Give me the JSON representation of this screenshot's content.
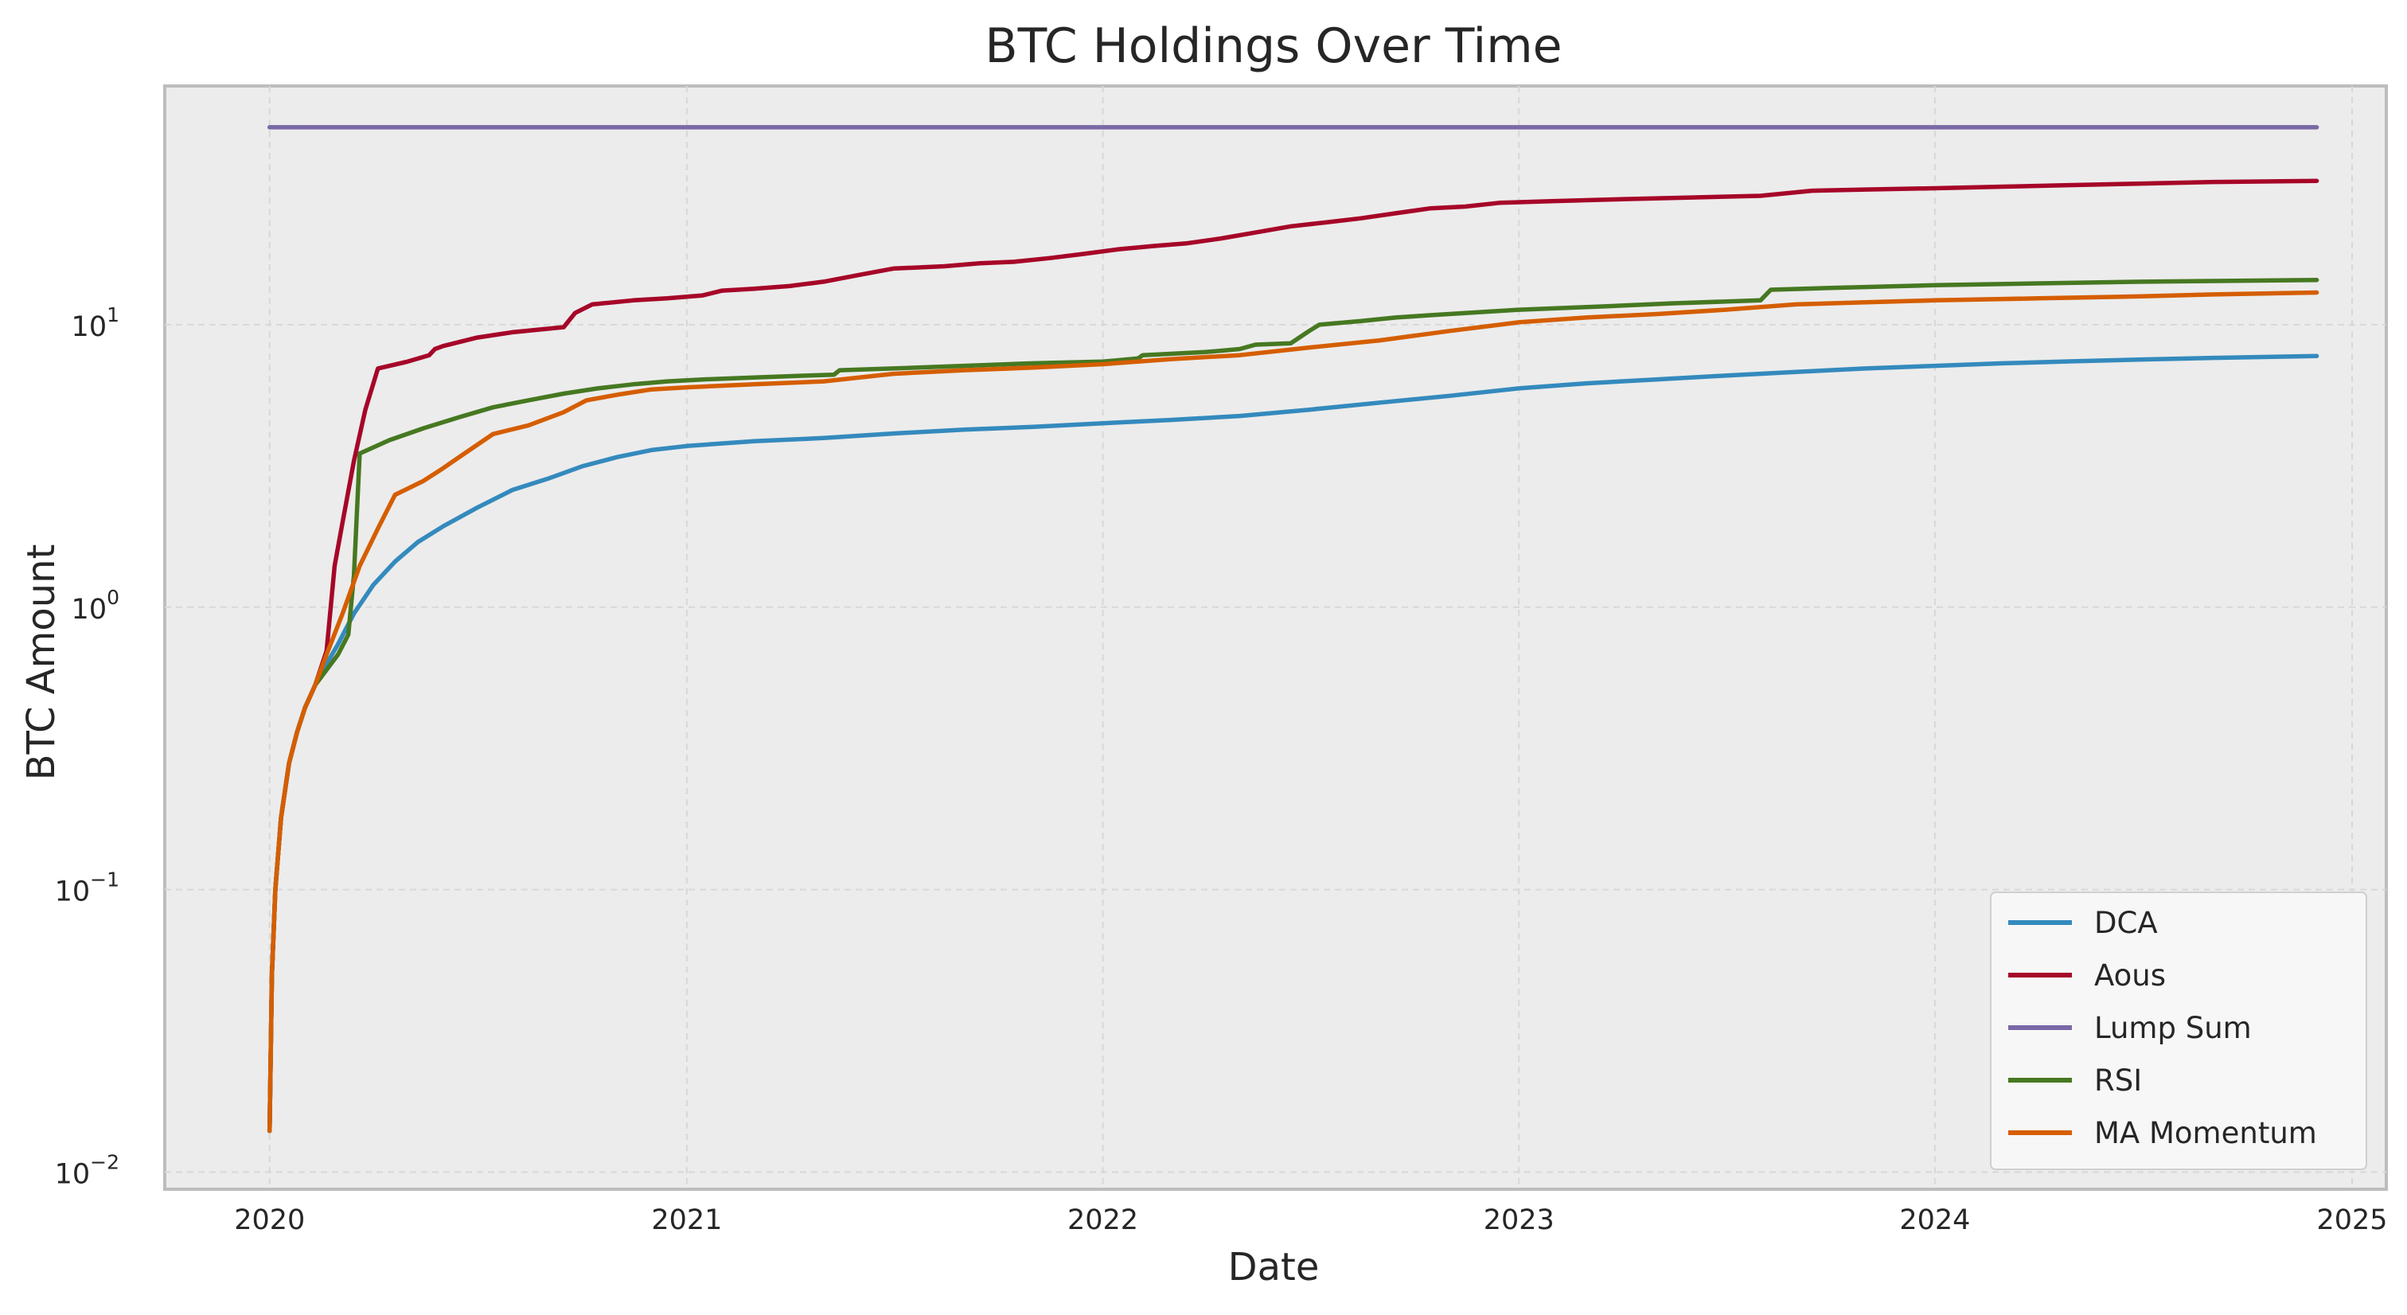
{
  "chart_data": {
    "type": "line",
    "title": "BTC Holdings Over Time",
    "xlabel": "Date",
    "ylabel": "BTC Amount",
    "y_scale": "log",
    "xlim": [
      "2019-10-01",
      "2025-01-31"
    ],
    "ylim": [
      0.0087,
      70
    ],
    "x_ticks": [
      {
        "date": "2020-01-01",
        "label": "2020"
      },
      {
        "date": "2021-01-01",
        "label": "2021"
      },
      {
        "date": "2022-01-01",
        "label": "2022"
      },
      {
        "date": "2023-01-01",
        "label": "2023"
      },
      {
        "date": "2024-01-01",
        "label": "2024"
      },
      {
        "date": "2025-01-01",
        "label": "2025"
      }
    ],
    "y_ticks": [
      {
        "value": 0.01,
        "base": "10",
        "exp": "−2"
      },
      {
        "value": 0.1,
        "base": "10",
        "exp": "−1"
      },
      {
        "value": 1,
        "base": "10",
        "exp": "0"
      },
      {
        "value": 10,
        "base": "10",
        "exp": "1"
      }
    ],
    "grid": true,
    "legend_position": "bottom-right",
    "series": [
      {
        "name": "DCA",
        "color": "#348ABD",
        "points": [
          [
            "2020-01-01",
            0.014
          ],
          [
            "2020-01-03",
            0.05
          ],
          [
            "2020-01-06",
            0.1
          ],
          [
            "2020-01-11",
            0.18
          ],
          [
            "2020-01-18",
            0.28
          ],
          [
            "2020-01-25",
            0.36
          ],
          [
            "2020-02-01",
            0.44
          ],
          [
            "2020-02-10",
            0.53
          ],
          [
            "2020-02-20",
            0.63
          ],
          [
            "2020-03-01",
            0.74
          ],
          [
            "2020-03-15",
            0.95
          ],
          [
            "2020-04-01",
            1.2
          ],
          [
            "2020-04-20",
            1.45
          ],
          [
            "2020-05-10",
            1.7
          ],
          [
            "2020-06-01",
            1.93
          ],
          [
            "2020-07-01",
            2.25
          ],
          [
            "2020-08-01",
            2.6
          ],
          [
            "2020-09-01",
            2.85
          ],
          [
            "2020-10-01",
            3.15
          ],
          [
            "2020-11-01",
            3.4
          ],
          [
            "2020-12-01",
            3.6
          ],
          [
            "2021-01-01",
            3.72
          ],
          [
            "2021-03-01",
            3.87
          ],
          [
            "2021-05-01",
            3.97
          ],
          [
            "2021-07-01",
            4.12
          ],
          [
            "2021-09-01",
            4.25
          ],
          [
            "2021-11-01",
            4.35
          ],
          [
            "2022-01-01",
            4.48
          ],
          [
            "2022-03-01",
            4.6
          ],
          [
            "2022-05-01",
            4.75
          ],
          [
            "2022-07-01",
            5.0
          ],
          [
            "2022-09-01",
            5.3
          ],
          [
            "2022-11-01",
            5.6
          ],
          [
            "2023-01-01",
            5.95
          ],
          [
            "2023-03-01",
            6.2
          ],
          [
            "2023-05-01",
            6.4
          ],
          [
            "2023-07-01",
            6.6
          ],
          [
            "2023-09-01",
            6.8
          ],
          [
            "2023-11-01",
            7.0
          ],
          [
            "2024-01-01",
            7.15
          ],
          [
            "2024-03-01",
            7.3
          ],
          [
            "2024-05-01",
            7.42
          ],
          [
            "2024-07-01",
            7.53
          ],
          [
            "2024-09-01",
            7.63
          ],
          [
            "2024-12-01",
            7.75
          ]
        ]
      },
      {
        "name": "Aous",
        "color": "#A60628",
        "points": [
          [
            "2020-01-01",
            0.014
          ],
          [
            "2020-01-03",
            0.05
          ],
          [
            "2020-01-06",
            0.1
          ],
          [
            "2020-01-11",
            0.18
          ],
          [
            "2020-01-18",
            0.28
          ],
          [
            "2020-01-25",
            0.36
          ],
          [
            "2020-02-01",
            0.44
          ],
          [
            "2020-02-10",
            0.53
          ],
          [
            "2020-02-20",
            0.7
          ],
          [
            "2020-02-27",
            1.4
          ],
          [
            "2020-03-05",
            2.0
          ],
          [
            "2020-03-15",
            3.3
          ],
          [
            "2020-03-25",
            5.0
          ],
          [
            "2020-04-05",
            7.0
          ],
          [
            "2020-05-01",
            7.4
          ],
          [
            "2020-05-20",
            7.8
          ],
          [
            "2020-05-25",
            8.2
          ],
          [
            "2020-06-01",
            8.4
          ],
          [
            "2020-07-01",
            9.0
          ],
          [
            "2020-08-01",
            9.4
          ],
          [
            "2020-09-15",
            9.8
          ],
          [
            "2020-09-25",
            11.0
          ],
          [
            "2020-10-10",
            11.8
          ],
          [
            "2020-11-15",
            12.2
          ],
          [
            "2020-12-15",
            12.4
          ],
          [
            "2021-01-15",
            12.7
          ],
          [
            "2021-02-01",
            13.2
          ],
          [
            "2021-03-01",
            13.4
          ],
          [
            "2021-04-01",
            13.7
          ],
          [
            "2021-05-01",
            14.2
          ],
          [
            "2021-06-01",
            15.0
          ],
          [
            "2021-07-01",
            15.8
          ],
          [
            "2021-08-15",
            16.1
          ],
          [
            "2021-09-15",
            16.5
          ],
          [
            "2021-10-15",
            16.7
          ],
          [
            "2021-11-15",
            17.2
          ],
          [
            "2021-12-15",
            17.8
          ],
          [
            "2022-01-15",
            18.5
          ],
          [
            "2022-02-15",
            19.0
          ],
          [
            "2022-03-15",
            19.4
          ],
          [
            "2022-04-15",
            20.2
          ],
          [
            "2022-05-15",
            21.2
          ],
          [
            "2022-06-15",
            22.3
          ],
          [
            "2022-07-15",
            23.0
          ],
          [
            "2022-08-15",
            23.8
          ],
          [
            "2022-09-15",
            24.8
          ],
          [
            "2022-10-15",
            25.8
          ],
          [
            "2022-11-15",
            26.2
          ],
          [
            "2022-12-15",
            27.0
          ],
          [
            "2023-02-01",
            27.4
          ],
          [
            "2023-04-01",
            27.8
          ],
          [
            "2023-06-01",
            28.2
          ],
          [
            "2023-08-01",
            28.6
          ],
          [
            "2023-09-15",
            29.8
          ],
          [
            "2023-11-01",
            30.1
          ],
          [
            "2024-01-01",
            30.4
          ],
          [
            "2024-03-01",
            30.8
          ],
          [
            "2024-05-01",
            31.2
          ],
          [
            "2024-07-01",
            31.6
          ],
          [
            "2024-09-01",
            32.0
          ],
          [
            "2024-12-01",
            32.3
          ]
        ]
      },
      {
        "name": "Lump Sum",
        "color": "#7A68A6",
        "points": [
          [
            "2020-01-01",
            50.0
          ],
          [
            "2024-12-01",
            50.0
          ]
        ]
      },
      {
        "name": "RSI",
        "color": "#467821",
        "points": [
          [
            "2020-01-01",
            0.014
          ],
          [
            "2020-01-03",
            0.05
          ],
          [
            "2020-01-06",
            0.1
          ],
          [
            "2020-01-11",
            0.18
          ],
          [
            "2020-01-18",
            0.28
          ],
          [
            "2020-01-25",
            0.36
          ],
          [
            "2020-02-01",
            0.44
          ],
          [
            "2020-02-10",
            0.53
          ],
          [
            "2020-02-20",
            0.6
          ],
          [
            "2020-03-01",
            0.68
          ],
          [
            "2020-03-10",
            0.8
          ],
          [
            "2020-03-15",
            1.3
          ],
          [
            "2020-03-20",
            3.5
          ],
          [
            "2020-04-15",
            3.9
          ],
          [
            "2020-05-15",
            4.3
          ],
          [
            "2020-06-15",
            4.7
          ],
          [
            "2020-07-15",
            5.1
          ],
          [
            "2020-08-15",
            5.4
          ],
          [
            "2020-09-15",
            5.7
          ],
          [
            "2020-10-15",
            5.95
          ],
          [
            "2020-11-15",
            6.15
          ],
          [
            "2020-12-15",
            6.3
          ],
          [
            "2021-01-15",
            6.4
          ],
          [
            "2021-03-01",
            6.5
          ],
          [
            "2021-04-15",
            6.6
          ],
          [
            "2021-05-10",
            6.65
          ],
          [
            "2021-05-15",
            6.9
          ],
          [
            "2021-07-01",
            7.0
          ],
          [
            "2021-09-01",
            7.15
          ],
          [
            "2021-11-01",
            7.3
          ],
          [
            "2022-01-01",
            7.4
          ],
          [
            "2022-02-01",
            7.6
          ],
          [
            "2022-02-05",
            7.8
          ],
          [
            "2022-04-01",
            8.0
          ],
          [
            "2022-05-01",
            8.2
          ],
          [
            "2022-05-15",
            8.5
          ],
          [
            "2022-06-15",
            8.6
          ],
          [
            "2022-07-01",
            9.5
          ],
          [
            "2022-07-10",
            10.0
          ],
          [
            "2022-08-15",
            10.3
          ],
          [
            "2022-09-15",
            10.6
          ],
          [
            "2022-10-15",
            10.8
          ],
          [
            "2022-11-15",
            11.0
          ],
          [
            "2023-01-01",
            11.3
          ],
          [
            "2023-03-15",
            11.6
          ],
          [
            "2023-05-15",
            11.9
          ],
          [
            "2023-08-01",
            12.2
          ],
          [
            "2023-08-10",
            13.3
          ],
          [
            "2023-10-01",
            13.5
          ],
          [
            "2024-01-01",
            13.8
          ],
          [
            "2024-04-01",
            14.0
          ],
          [
            "2024-07-01",
            14.2
          ],
          [
            "2024-12-01",
            14.4
          ]
        ]
      },
      {
        "name": "MA Momentum",
        "color": "#D55E00",
        "points": [
          [
            "2020-01-01",
            0.014
          ],
          [
            "2020-01-03",
            0.05
          ],
          [
            "2020-01-06",
            0.1
          ],
          [
            "2020-01-11",
            0.18
          ],
          [
            "2020-01-18",
            0.28
          ],
          [
            "2020-01-25",
            0.36
          ],
          [
            "2020-02-01",
            0.44
          ],
          [
            "2020-02-10",
            0.53
          ],
          [
            "2020-02-20",
            0.68
          ],
          [
            "2020-03-05",
            0.95
          ],
          [
            "2020-03-20",
            1.4
          ],
          [
            "2020-04-05",
            1.9
          ],
          [
            "2020-04-20",
            2.5
          ],
          [
            "2020-05-15",
            2.8
          ],
          [
            "2020-06-01",
            3.1
          ],
          [
            "2020-06-20",
            3.5
          ],
          [
            "2020-07-15",
            4.1
          ],
          [
            "2020-08-15",
            4.4
          ],
          [
            "2020-09-15",
            4.9
          ],
          [
            "2020-10-05",
            5.4
          ],
          [
            "2020-11-01",
            5.65
          ],
          [
            "2020-12-01",
            5.9
          ],
          [
            "2021-01-01",
            6.0
          ],
          [
            "2021-03-01",
            6.15
          ],
          [
            "2021-05-01",
            6.3
          ],
          [
            "2021-07-01",
            6.7
          ],
          [
            "2021-09-01",
            6.9
          ],
          [
            "2021-11-01",
            7.05
          ],
          [
            "2022-01-01",
            7.25
          ],
          [
            "2022-03-01",
            7.55
          ],
          [
            "2022-05-01",
            7.8
          ],
          [
            "2022-07-01",
            8.3
          ],
          [
            "2022-09-01",
            8.8
          ],
          [
            "2022-11-01",
            9.5
          ],
          [
            "2023-01-01",
            10.2
          ],
          [
            "2023-03-01",
            10.6
          ],
          [
            "2023-05-01",
            10.9
          ],
          [
            "2023-07-01",
            11.3
          ],
          [
            "2023-09-01",
            11.8
          ],
          [
            "2023-11-01",
            12.0
          ],
          [
            "2024-01-01",
            12.2
          ],
          [
            "2024-04-01",
            12.4
          ],
          [
            "2024-07-01",
            12.6
          ],
          [
            "2024-09-01",
            12.8
          ],
          [
            "2024-12-01",
            13.0
          ]
        ]
      }
    ]
  }
}
